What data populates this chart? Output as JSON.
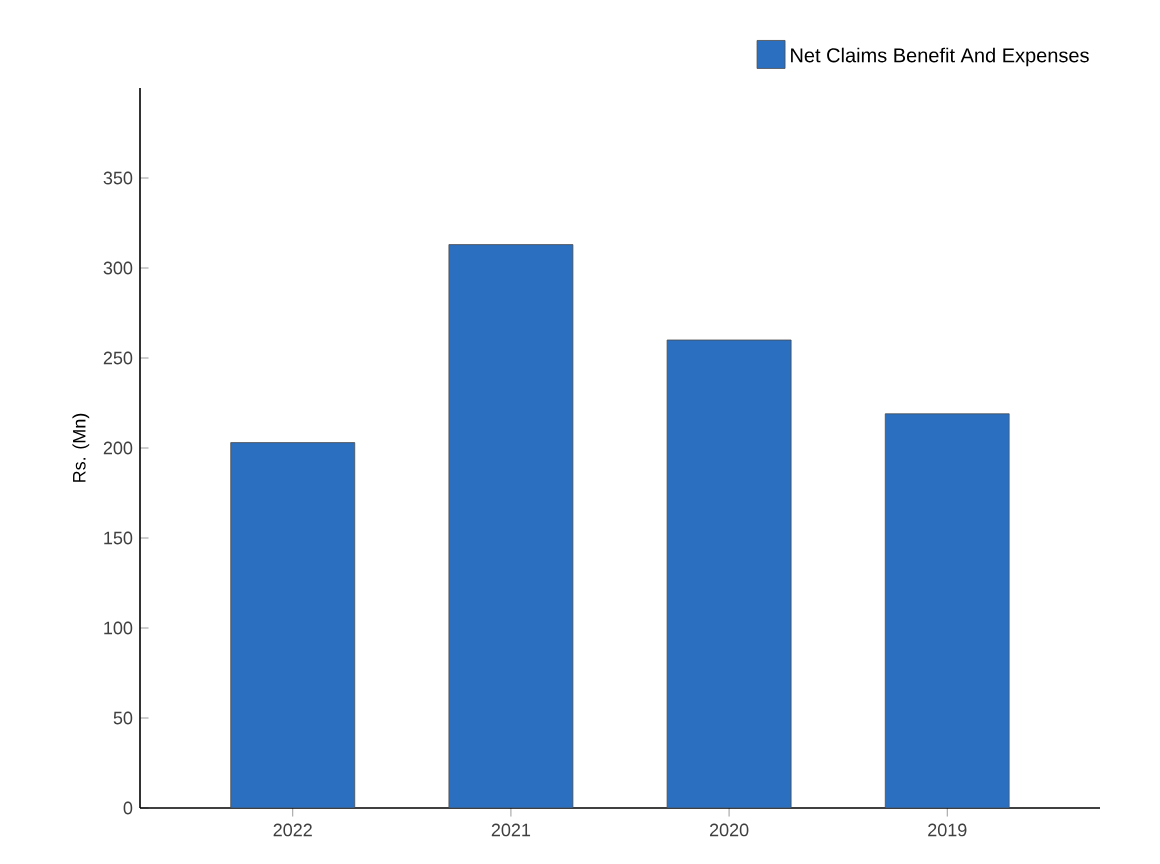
{
  "chart_data": {
    "type": "bar",
    "ylabel": "Rs. (Mn)",
    "categories": [
      "2022",
      "2021",
      "2020",
      "2019"
    ],
    "series": [
      {
        "name": "Net Claims Benefit  And Expenses",
        "color": "#2a6fc0",
        "values": [
          203,
          313,
          260,
          219
        ]
      }
    ],
    "ylim": [
      0,
      400
    ],
    "yticks": [
      0,
      50,
      100,
      150,
      200,
      250,
      300,
      350
    ],
    "grid": false,
    "legend": "top right"
  }
}
